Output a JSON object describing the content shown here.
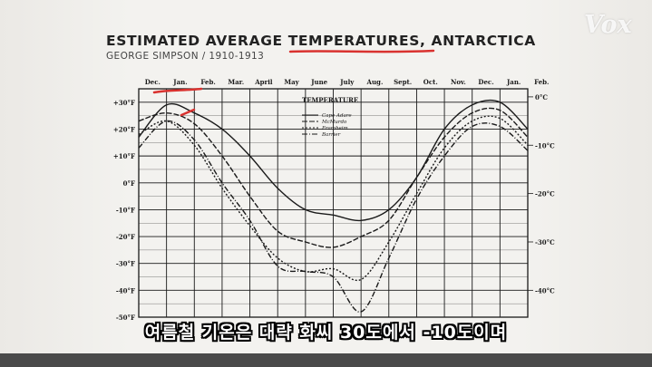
{
  "header": {
    "title": "ESTIMATED AVERAGE TEMPERATURES, ANTARCTICA",
    "subtitle": "GEORGE SIMPSON / 1910-1913",
    "brand": "Vox"
  },
  "caption": "여름철 기온은 대략 화씨 30도에서 -10도이며",
  "colors": {
    "ink": "#1a1a1a",
    "highlight": "#d9322f",
    "paper": "#f4f3ef"
  },
  "chart_data": {
    "type": "line",
    "legend_title": "TEMPERATURE",
    "legend_placement": "top-center",
    "grid": true,
    "categories": [
      "Dec.",
      "Jan.",
      "Feb.",
      "Mar.",
      "April",
      "May",
      "June",
      "July",
      "Aug.",
      "Sept.",
      "Oct.",
      "Nov.",
      "Dec.",
      "Jan.",
      "Feb."
    ],
    "y_left_ticks": [
      "+30°F",
      "+20°F",
      "+10°F",
      "0°F",
      "-10°F",
      "-20°F",
      "-30°F",
      "-40°F",
      "-50°F"
    ],
    "y_right_ticks": [
      "0°C",
      "-10°C",
      "-20°C",
      "-30°C",
      "-40°C"
    ],
    "ylim": [
      -50,
      35
    ],
    "series": [
      {
        "name": "Cape Adare",
        "values": [
          17,
          29,
          26,
          20,
          10,
          -2,
          -10,
          -12,
          -14,
          -10,
          2,
          20,
          29,
          30,
          20
        ]
      },
      {
        "name": "McMurdo",
        "values": [
          23,
          26,
          22,
          10,
          -5,
          -18,
          -22,
          -24,
          -20,
          -14,
          2,
          17,
          26,
          27,
          17
        ]
      },
      {
        "name": "Framheim",
        "values": [
          18,
          23,
          14,
          -2,
          -16,
          -28,
          -33,
          -32,
          -36,
          -22,
          -4,
          13,
          23,
          24,
          14
        ]
      },
      {
        "name": "Barrier",
        "values": [
          13,
          23,
          16,
          0,
          -14,
          -31,
          -33,
          -35,
          -48,
          -28,
          -6,
          10,
          21,
          21,
          12
        ]
      }
    ]
  }
}
